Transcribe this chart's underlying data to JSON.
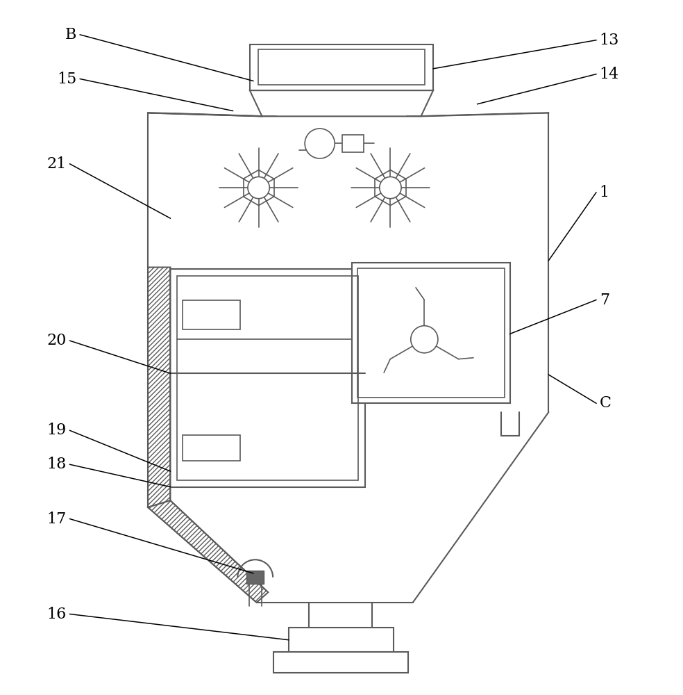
{
  "bg_color": "#ffffff",
  "line_color": "#5a5a5a",
  "lw": 1.5,
  "lw2": 1.2
}
